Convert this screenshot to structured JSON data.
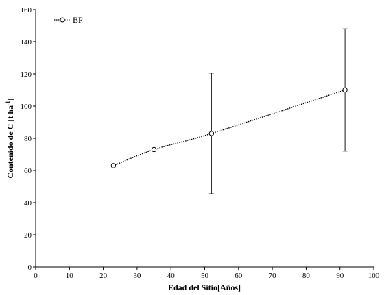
{
  "chart_data": {
    "type": "line",
    "xlabel": "Edad del Sitio[Años]",
    "ylabel_main": "Contenido de C [t ha",
    "ylabel_sup": "-1",
    "ylabel_end": "]",
    "xlim": [
      0,
      100
    ],
    "ylim": [
      0,
      160
    ],
    "xticks": [
      0,
      10,
      20,
      30,
      40,
      50,
      60,
      70,
      80,
      90,
      100
    ],
    "yticks": [
      0,
      20,
      40,
      60,
      80,
      100,
      120,
      140,
      160
    ],
    "grid": false,
    "legend_position": "top-left",
    "series": [
      {
        "name": "BP",
        "color": "#000000",
        "line_style": "dotted",
        "marker": "open-circle",
        "x": [
          23,
          35,
          52,
          91.5
        ],
        "y": [
          63,
          73,
          83,
          110
        ],
        "error": [
          null,
          null,
          37.5,
          38
        ]
      }
    ]
  }
}
